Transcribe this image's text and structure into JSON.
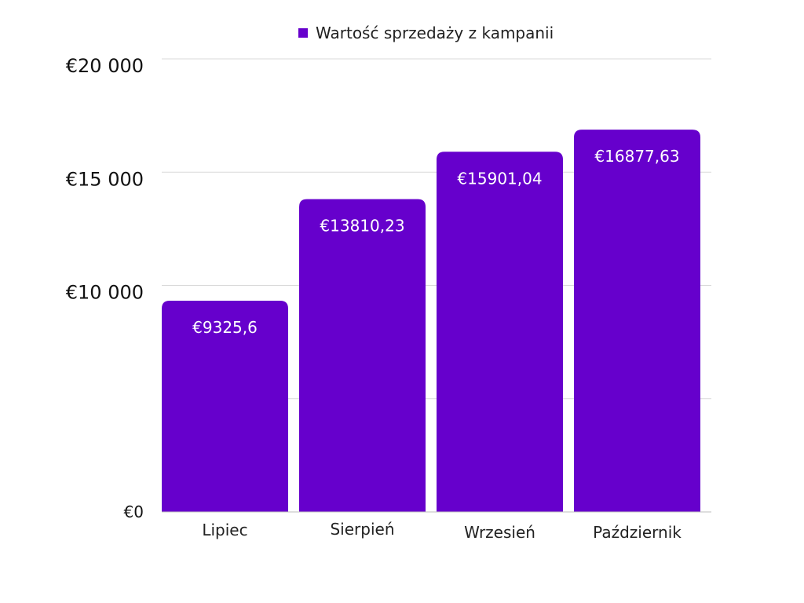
{
  "colors": {
    "bar": "#6600CC",
    "grid": "#d9d9d9",
    "axis": "#bdbdbd"
  },
  "chart_data": {
    "type": "bar",
    "categories": [
      "Lipiec",
      "Sierpień",
      "Wrzesień",
      "Październik"
    ],
    "series": [
      {
        "name": "Wartość sprzedaży z kampanii",
        "values": [
          9325.6,
          13810.23,
          15901.04,
          16877.63
        ],
        "data_labels": [
          "€9325,6",
          "€13810,23",
          "€15901,04",
          "€16877,63"
        ]
      }
    ],
    "ylim": [
      0,
      20000
    ],
    "yticks": [
      {
        "value": 20000,
        "label": "€20 000"
      },
      {
        "value": 15000,
        "label": "€15 000"
      },
      {
        "value": 10000,
        "label": "€10 000"
      },
      {
        "value": 0,
        "label": "€0"
      }
    ],
    "gridlines": [
      5000,
      10000,
      15000,
      20000
    ],
    "legend_position": "top-center",
    "grid": true
  }
}
